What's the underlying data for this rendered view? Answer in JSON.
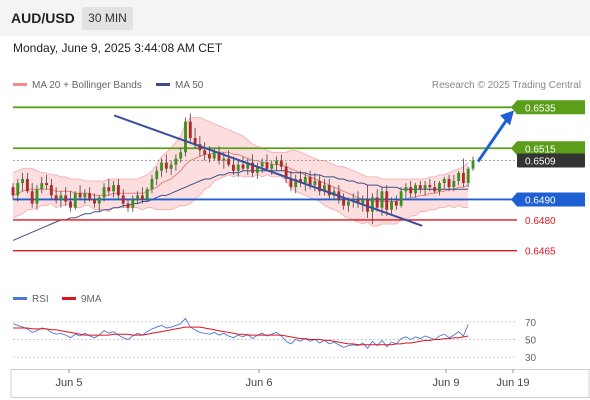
{
  "header": {
    "pair": "AUD/USD",
    "timeframe": "30 MIN",
    "datetime": "Monday, June 9, 2025 3:44:08 AM CET"
  },
  "legend": {
    "bollinger": "MA 20 + Bollinger Bands",
    "ma50": "MA 50",
    "research": "Research © 2025 Trading Central"
  },
  "rsi_legend": {
    "rsi": "RSI",
    "ma": "9MA"
  },
  "colors": {
    "green": "#5a9e1a",
    "blue": "#1f5fd4",
    "red": "#e0141e",
    "bollinger_fill": "#fbd6d6",
    "ma50": "#3d4e8a",
    "candle_up": "#3f8f1f",
    "candle_down": "#b02a2a",
    "rsi": "#4a78d8"
  },
  "chart_data": [
    {
      "type": "candlestick",
      "x_tick_labels": [
        "Jun 5",
        "Jun 6",
        "Jun 9",
        "Jun 19"
      ],
      "ylim": [
        0.6458,
        0.6541
      ],
      "levels": [
        {
          "label": "0.6535",
          "value": 0.6535,
          "kind": "resistance",
          "color": "#5a9e1a"
        },
        {
          "label": "0.6515",
          "value": 0.6515,
          "kind": "resistance",
          "color": "#5a9e1a"
        },
        {
          "label": "0.6509",
          "value": 0.6509,
          "kind": "last-price",
          "color": "#222222"
        },
        {
          "label": "0.6490",
          "value": 0.649,
          "kind": "pivot",
          "color": "#1f5fd4"
        },
        {
          "label": "0.6480",
          "value": 0.648,
          "kind": "support",
          "color": "#e0141e"
        },
        {
          "label": "0.6465",
          "value": 0.6465,
          "kind": "support",
          "color": "#e0141e"
        }
      ],
      "ohlc": [
        [
          0.6496,
          0.6498,
          0.649,
          0.6492
        ],
        [
          0.6492,
          0.65,
          0.6489,
          0.6498
        ],
        [
          0.6498,
          0.6503,
          0.6494,
          0.65
        ],
        [
          0.65,
          0.6503,
          0.6493,
          0.6494
        ],
        [
          0.6494,
          0.6498,
          0.6486,
          0.6488
        ],
        [
          0.6488,
          0.6497,
          0.6485,
          0.6495
        ],
        [
          0.6495,
          0.6501,
          0.6493,
          0.6498
        ],
        [
          0.6498,
          0.6502,
          0.6495,
          0.6497
        ],
        [
          0.6497,
          0.65,
          0.649,
          0.6492
        ],
        [
          0.6492,
          0.6496,
          0.6488,
          0.649
        ],
        [
          0.649,
          0.6494,
          0.6486,
          0.6492
        ],
        [
          0.6492,
          0.6496,
          0.6487,
          0.6489
        ],
        [
          0.6489,
          0.6494,
          0.6484,
          0.6486
        ],
        [
          0.6486,
          0.6494,
          0.6485,
          0.6493
        ],
        [
          0.6493,
          0.6497,
          0.649,
          0.6491
        ],
        [
          0.6491,
          0.6495,
          0.6488,
          0.6493
        ],
        [
          0.6493,
          0.6496,
          0.6489,
          0.649
        ],
        [
          0.649,
          0.6493,
          0.6486,
          0.6488
        ],
        [
          0.6488,
          0.6492,
          0.6484,
          0.6491
        ],
        [
          0.6491,
          0.6498,
          0.6489,
          0.6496
        ],
        [
          0.6496,
          0.65,
          0.6492,
          0.6494
        ],
        [
          0.6494,
          0.6499,
          0.6491,
          0.6497
        ],
        [
          0.6497,
          0.65,
          0.649,
          0.6492
        ],
        [
          0.6492,
          0.6495,
          0.6486,
          0.6488
        ],
        [
          0.6488,
          0.649,
          0.6484,
          0.6486
        ],
        [
          0.6486,
          0.6492,
          0.6484,
          0.649
        ],
        [
          0.649,
          0.6494,
          0.6488,
          0.6492
        ],
        [
          0.6492,
          0.6496,
          0.6488,
          0.649
        ],
        [
          0.649,
          0.6496,
          0.6489,
          0.6495
        ],
        [
          0.6495,
          0.6502,
          0.6493,
          0.65
        ],
        [
          0.65,
          0.6506,
          0.6497,
          0.6504
        ],
        [
          0.6504,
          0.651,
          0.6501,
          0.6508
        ],
        [
          0.6508,
          0.6512,
          0.6503,
          0.6505
        ],
        [
          0.6505,
          0.6509,
          0.6502,
          0.6507
        ],
        [
          0.6507,
          0.6512,
          0.6504,
          0.651
        ],
        [
          0.651,
          0.6515,
          0.6508,
          0.6513
        ],
        [
          0.6513,
          0.653,
          0.6511,
          0.6528
        ],
        [
          0.6528,
          0.6532,
          0.6518,
          0.652
        ],
        [
          0.652,
          0.6525,
          0.6515,
          0.6517
        ],
        [
          0.6517,
          0.6521,
          0.6511,
          0.6514
        ],
        [
          0.6514,
          0.6518,
          0.6509,
          0.6512
        ],
        [
          0.6512,
          0.6516,
          0.6508,
          0.651
        ],
        [
          0.651,
          0.6515,
          0.6509,
          0.6513
        ],
        [
          0.6513,
          0.6516,
          0.6507,
          0.6509
        ],
        [
          0.6509,
          0.6513,
          0.6505,
          0.651
        ],
        [
          0.651,
          0.6514,
          0.6506,
          0.6507
        ],
        [
          0.6507,
          0.6511,
          0.6502,
          0.6504
        ],
        [
          0.6504,
          0.6509,
          0.6501,
          0.6507
        ],
        [
          0.6507,
          0.6511,
          0.6504,
          0.6505
        ],
        [
          0.6505,
          0.651,
          0.6502,
          0.6508
        ],
        [
          0.6508,
          0.6512,
          0.6501,
          0.6503
        ],
        [
          0.6503,
          0.6508,
          0.65,
          0.6506
        ],
        [
          0.6506,
          0.651,
          0.6503,
          0.6508
        ],
        [
          0.6508,
          0.6512,
          0.6504,
          0.6505
        ],
        [
          0.6505,
          0.6509,
          0.6502,
          0.6507
        ],
        [
          0.6507,
          0.6511,
          0.6504,
          0.6509
        ],
        [
          0.6509,
          0.6512,
          0.6504,
          0.6506
        ],
        [
          0.6506,
          0.6508,
          0.6498,
          0.65
        ],
        [
          0.65,
          0.6504,
          0.6494,
          0.6496
        ],
        [
          0.6496,
          0.6502,
          0.6493,
          0.65
        ],
        [
          0.65,
          0.6504,
          0.6496,
          0.6498
        ],
        [
          0.6498,
          0.6503,
          0.6494,
          0.6501
        ],
        [
          0.6501,
          0.6504,
          0.6495,
          0.6497
        ],
        [
          0.6497,
          0.6503,
          0.6494,
          0.6499
        ],
        [
          0.6499,
          0.6502,
          0.6492,
          0.6494
        ],
        [
          0.6494,
          0.65,
          0.6492,
          0.6497
        ],
        [
          0.6497,
          0.65,
          0.649,
          0.6492
        ],
        [
          0.6492,
          0.6496,
          0.649,
          0.6494
        ],
        [
          0.6494,
          0.6497,
          0.6488,
          0.649
        ],
        [
          0.649,
          0.6493,
          0.6485,
          0.6487
        ],
        [
          0.6487,
          0.6491,
          0.6484,
          0.6489
        ],
        [
          0.6489,
          0.6493,
          0.6486,
          0.649
        ],
        [
          0.649,
          0.6494,
          0.6486,
          0.6488
        ],
        [
          0.6488,
          0.6492,
          0.6484,
          0.649
        ],
        [
          0.649,
          0.6497,
          0.6481,
          0.6484
        ],
        [
          0.6484,
          0.6493,
          0.6478,
          0.6491
        ],
        [
          0.6491,
          0.6495,
          0.6484,
          0.6486
        ],
        [
          0.6486,
          0.6496,
          0.6482,
          0.6494
        ],
        [
          0.6494,
          0.6497,
          0.6482,
          0.6485
        ],
        [
          0.6485,
          0.6491,
          0.6483,
          0.6489
        ],
        [
          0.6489,
          0.6492,
          0.6485,
          0.6487
        ],
        [
          0.6487,
          0.6496,
          0.6486,
          0.6494
        ],
        [
          0.6494,
          0.6498,
          0.649,
          0.6496
        ],
        [
          0.6496,
          0.6499,
          0.6491,
          0.6493
        ],
        [
          0.6493,
          0.6498,
          0.6491,
          0.6497
        ],
        [
          0.6497,
          0.6499,
          0.6493,
          0.6495
        ],
        [
          0.6495,
          0.6499,
          0.6492,
          0.6497
        ],
        [
          0.6497,
          0.65,
          0.6494,
          0.6496
        ],
        [
          0.6496,
          0.6499,
          0.6493,
          0.6494
        ],
        [
          0.6494,
          0.6499,
          0.6492,
          0.6498
        ],
        [
          0.6498,
          0.6501,
          0.6495,
          0.65
        ],
        [
          0.65,
          0.6502,
          0.6494,
          0.6496
        ],
        [
          0.6496,
          0.6502,
          0.6494,
          0.6499
        ],
        [
          0.6499,
          0.6504,
          0.6497,
          0.6503
        ],
        [
          0.6503,
          0.651,
          0.6496,
          0.6498
        ],
        [
          0.6498,
          0.6506,
          0.6496,
          0.6505
        ],
        [
          0.6505,
          0.6511,
          0.6504,
          0.6509
        ]
      ],
      "ma20": [
        0.6492,
        0.6493,
        0.6494,
        0.6495,
        0.6495,
        0.6495,
        0.6495,
        0.6495,
        0.6495,
        0.6494,
        0.6494,
        0.6494,
        0.6494,
        0.6493,
        0.6493,
        0.6493,
        0.6493,
        0.6492,
        0.6492,
        0.6492,
        0.6492,
        0.6493,
        0.6493,
        0.6493,
        0.6493,
        0.6493,
        0.6493,
        0.6493,
        0.6494,
        0.6495,
        0.6496,
        0.6498,
        0.6499,
        0.65,
        0.6502,
        0.6504,
        0.6507,
        0.6509,
        0.651,
        0.6511,
        0.6512,
        0.6512,
        0.6513,
        0.6513,
        0.6513,
        0.6513,
        0.6512,
        0.6512,
        0.6511,
        0.651,
        0.6509,
        0.6509,
        0.6508,
        0.6508,
        0.6507,
        0.6507,
        0.6507,
        0.6506,
        0.6505,
        0.6504,
        0.6503,
        0.6502,
        0.6501,
        0.65,
        0.6499,
        0.6498,
        0.6497,
        0.6496,
        0.6495,
        0.6494,
        0.6493,
        0.6492,
        0.6491,
        0.649,
        0.649,
        0.6489,
        0.6489,
        0.6489,
        0.6489,
        0.6489,
        0.6489,
        0.649,
        0.649,
        0.6491,
        0.6491,
        0.6492,
        0.6492,
        0.6493,
        0.6493,
        0.6494,
        0.6494,
        0.6495,
        0.6495,
        0.6496,
        0.6496,
        0.6497
      ],
      "bb_upper": [
        0.6503,
        0.6504,
        0.6505,
        0.6505,
        0.6505,
        0.6504,
        0.6503,
        0.6503,
        0.6502,
        0.6502,
        0.6501,
        0.6501,
        0.65,
        0.65,
        0.65,
        0.6499,
        0.6499,
        0.6499,
        0.6499,
        0.6499,
        0.65,
        0.65,
        0.65,
        0.65,
        0.65,
        0.65,
        0.65,
        0.6501,
        0.6502,
        0.6504,
        0.6507,
        0.6511,
        0.6513,
        0.6515,
        0.6518,
        0.6521,
        0.6527,
        0.653,
        0.653,
        0.653,
        0.6529,
        0.6528,
        0.6527,
        0.6526,
        0.6525,
        0.6524,
        0.6523,
        0.6522,
        0.6521,
        0.6519,
        0.6517,
        0.6516,
        0.6515,
        0.6514,
        0.6513,
        0.6513,
        0.6513,
        0.6513,
        0.6514,
        0.6514,
        0.6513,
        0.6512,
        0.6511,
        0.651,
        0.6509,
        0.6509,
        0.6508,
        0.6507,
        0.6506,
        0.6506,
        0.6505,
        0.6504,
        0.6503,
        0.6502,
        0.6501,
        0.6501,
        0.6501,
        0.65,
        0.65,
        0.65,
        0.65,
        0.65,
        0.65,
        0.65,
        0.65,
        0.65,
        0.65,
        0.6501,
        0.6501,
        0.6502,
        0.6502,
        0.6503,
        0.6504,
        0.6505,
        0.6506,
        0.6508
      ],
      "bb_lower": [
        0.6481,
        0.6482,
        0.6483,
        0.6485,
        0.6485,
        0.6486,
        0.6487,
        0.6487,
        0.6488,
        0.6486,
        0.6487,
        0.6487,
        0.6488,
        0.6486,
        0.6486,
        0.6487,
        0.6487,
        0.6485,
        0.6485,
        0.6485,
        0.6484,
        0.6486,
        0.6486,
        0.6486,
        0.6486,
        0.6486,
        0.6486,
        0.6485,
        0.6486,
        0.6486,
        0.6485,
        0.6485,
        0.6485,
        0.6485,
        0.6486,
        0.6487,
        0.6487,
        0.6488,
        0.649,
        0.6492,
        0.6495,
        0.6496,
        0.6499,
        0.65,
        0.6501,
        0.6502,
        0.6501,
        0.6502,
        0.6501,
        0.6501,
        0.6501,
        0.6502,
        0.6501,
        0.6502,
        0.6501,
        0.6501,
        0.6501,
        0.6499,
        0.6496,
        0.6494,
        0.6493,
        0.6492,
        0.6491,
        0.649,
        0.6489,
        0.6487,
        0.6486,
        0.6485,
        0.6484,
        0.6482,
        0.6481,
        0.648,
        0.6479,
        0.6478,
        0.6479,
        0.6477,
        0.6477,
        0.6478,
        0.6478,
        0.6478,
        0.6478,
        0.648,
        0.648,
        0.6482,
        0.6482,
        0.6484,
        0.6484,
        0.6485,
        0.6485,
        0.6486,
        0.6486,
        0.6487,
        0.6486,
        0.6487,
        0.6486,
        0.6486
      ],
      "ma50": [
        0.647,
        0.6471,
        0.6472,
        0.6473,
        0.6474,
        0.6475,
        0.6476,
        0.6477,
        0.6478,
        0.6479,
        0.648,
        0.648,
        0.6481,
        0.6481,
        0.6482,
        0.6483,
        0.6483,
        0.6484,
        0.6484,
        0.6485,
        0.6485,
        0.6486,
        0.6486,
        0.6487,
        0.6487,
        0.6488,
        0.6488,
        0.6489,
        0.6489,
        0.649,
        0.6491,
        0.6492,
        0.6492,
        0.6493,
        0.6494,
        0.6495,
        0.6496,
        0.6497,
        0.6498,
        0.6499,
        0.65,
        0.65,
        0.6501,
        0.6502,
        0.6502,
        0.6503,
        0.6503,
        0.6503,
        0.6504,
        0.6504,
        0.6504,
        0.6504,
        0.6504,
        0.6504,
        0.6504,
        0.6504,
        0.6504,
        0.6504,
        0.6503,
        0.6503,
        0.6503,
        0.6503,
        0.6502,
        0.6502,
        0.6502,
        0.6501,
        0.6501,
        0.6501,
        0.65,
        0.65,
        0.6499,
        0.6499,
        0.6498,
        0.6498,
        0.6497,
        0.6497,
        0.6497,
        0.6496,
        0.6496,
        0.6496,
        0.6496,
        0.6495,
        0.6495,
        0.6495,
        0.6495,
        0.6495,
        0.6495,
        0.6495,
        0.6495,
        0.6495,
        0.6495,
        0.6495,
        0.6495,
        0.6495,
        0.6495,
        0.6495
      ],
      "trendline": [
        [
          0.22,
          0.6531
        ],
        [
          0.72,
          0.6482
        ]
      ],
      "projection_arrow": {
        "from": 0.6509,
        "to": 0.6533
      }
    },
    {
      "type": "line",
      "yticks": [
        70,
        50,
        30
      ],
      "ylim": [
        20,
        80
      ],
      "rsi": [
        68,
        66,
        64,
        62,
        58,
        60,
        63,
        62,
        58,
        56,
        57,
        55,
        52,
        56,
        54,
        57,
        54,
        52,
        55,
        60,
        57,
        59,
        55,
        52,
        50,
        54,
        57,
        55,
        59,
        62,
        64,
        66,
        63,
        64,
        66,
        68,
        74,
        64,
        61,
        58,
        57,
        56,
        58,
        55,
        57,
        54,
        52,
        55,
        53,
        56,
        51,
        55,
        57,
        54,
        56,
        58,
        54,
        48,
        45,
        50,
        48,
        51,
        48,
        50,
        46,
        49,
        45,
        47,
        44,
        41,
        43,
        44,
        43,
        46,
        40,
        48,
        43,
        49,
        42,
        47,
        45,
        51,
        53,
        50,
        53,
        51,
        54,
        52,
        50,
        54,
        56,
        52,
        55,
        59,
        54,
        67
      ],
      "rsi_ma": [
        63,
        63,
        63,
        63,
        62,
        62,
        62,
        62,
        61,
        61,
        60,
        59,
        58,
        57,
        56,
        55,
        55,
        55,
        55,
        55,
        55,
        56,
        56,
        56,
        56,
        55,
        55,
        55,
        56,
        57,
        58,
        59,
        60,
        61,
        62,
        63,
        64,
        64,
        64,
        64,
        63,
        62,
        61,
        60,
        59,
        58,
        57,
        56,
        56,
        55,
        55,
        55,
        55,
        55,
        55,
        55,
        55,
        54,
        53,
        52,
        51,
        51,
        50,
        50,
        50,
        49,
        49,
        48,
        47,
        46,
        45,
        45,
        44,
        44,
        44,
        44,
        44,
        44,
        44,
        44,
        45,
        45,
        46,
        46,
        47,
        48,
        49,
        49,
        50,
        50,
        51,
        51,
        52,
        52,
        53,
        54
      ]
    }
  ]
}
